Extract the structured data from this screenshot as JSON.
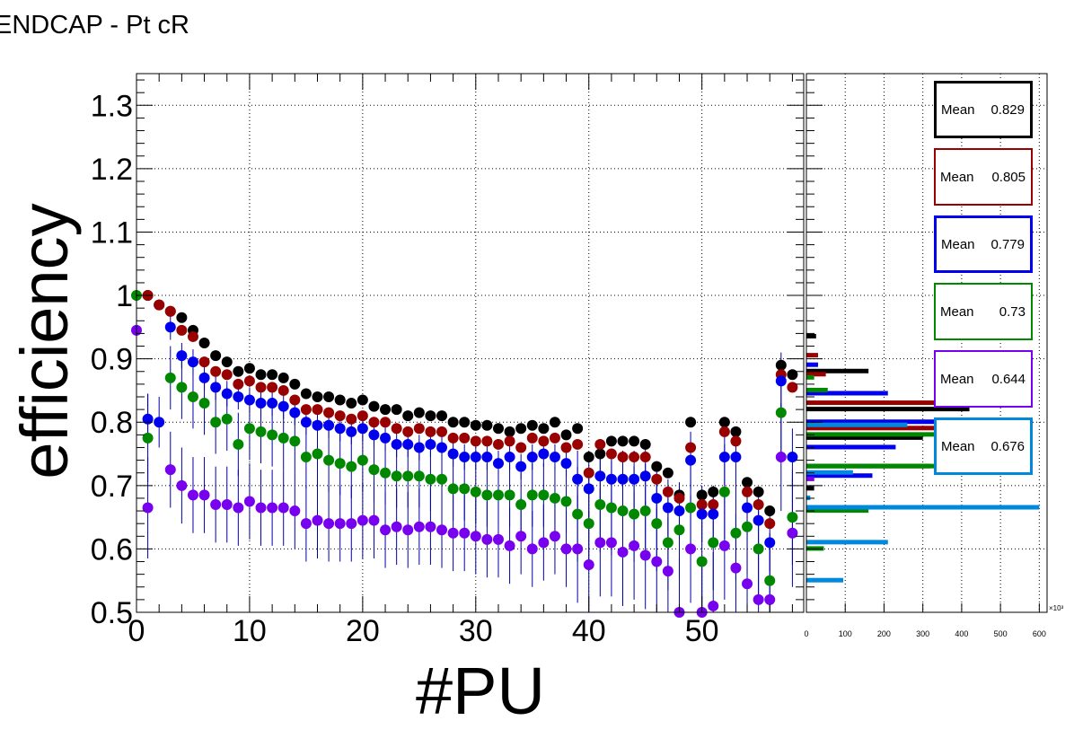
{
  "title": "ENDCAP - Pt cR",
  "chart_data": {
    "type": "scatter",
    "xlabel": "#PU",
    "ylabel": "efficiency",
    "xlim": [
      0,
      59
    ],
    "ylim": [
      0.5,
      1.35
    ],
    "grid": true,
    "xticks": [
      "0",
      "10",
      "20",
      "30",
      "40",
      "50"
    ],
    "yticks": [
      "0.5",
      "0.6",
      "0.7",
      "0.8",
      "0.9",
      "1",
      "1.1",
      "1.2",
      "1.3"
    ],
    "x": [
      0,
      1,
      2,
      3,
      4,
      5,
      6,
      7,
      8,
      9,
      10,
      11,
      12,
      13,
      14,
      15,
      16,
      17,
      18,
      19,
      20,
      21,
      22,
      23,
      24,
      25,
      26,
      27,
      28,
      29,
      30,
      31,
      32,
      33,
      34,
      35,
      36,
      37,
      38,
      39,
      40,
      41,
      42,
      43,
      44,
      45,
      46,
      47,
      48,
      49,
      50,
      51,
      52,
      53,
      54,
      55,
      56,
      57,
      58
    ],
    "series": [
      {
        "name": "black",
        "color": "#000000",
        "stat_label": "Mean",
        "mean": "0.829",
        "values": [
          null,
          1.0,
          0.985,
          0.975,
          0.965,
          0.945,
          0.925,
          0.905,
          0.895,
          0.88,
          0.885,
          0.875,
          0.875,
          0.87,
          0.86,
          0.845,
          0.84,
          0.84,
          0.835,
          0.83,
          0.835,
          0.825,
          0.82,
          0.82,
          0.81,
          0.815,
          0.81,
          0.81,
          0.8,
          0.8,
          0.795,
          0.795,
          0.79,
          0.785,
          0.79,
          0.795,
          0.79,
          0.8,
          0.78,
          0.79,
          0.745,
          0.75,
          0.77,
          0.77,
          0.77,
          0.765,
          0.73,
          0.72,
          0.685,
          0.8,
          0.685,
          0.69,
          0.8,
          0.785,
          0.705,
          0.69,
          0.66,
          0.89,
          0.875
        ]
      },
      {
        "name": "red",
        "color": "#990000",
        "stat_label": "Mean",
        "mean": "0.805",
        "values": [
          null,
          1.0,
          0.985,
          0.975,
          0.945,
          0.935,
          0.895,
          0.88,
          0.875,
          0.86,
          0.865,
          0.855,
          0.855,
          0.85,
          0.835,
          0.82,
          0.82,
          0.815,
          0.81,
          0.805,
          0.81,
          0.8,
          0.8,
          0.79,
          0.785,
          0.79,
          0.785,
          0.785,
          0.775,
          0.775,
          0.77,
          0.77,
          0.765,
          0.77,
          0.76,
          0.775,
          0.77,
          0.775,
          0.76,
          0.765,
          0.72,
          0.765,
          0.75,
          0.745,
          0.745,
          0.745,
          0.71,
          0.69,
          0.68,
          0.76,
          0.67,
          0.67,
          0.785,
          0.77,
          0.69,
          0.67,
          0.64,
          0.875,
          0.855
        ]
      },
      {
        "name": "blue",
        "color": "#0000ee",
        "stat_label": "Mean",
        "mean": "0.779",
        "values": [
          null,
          0.805,
          0.8,
          0.95,
          0.905,
          0.895,
          0.87,
          0.855,
          0.845,
          0.84,
          0.835,
          0.83,
          0.83,
          0.825,
          0.815,
          0.8,
          0.795,
          0.795,
          0.79,
          0.785,
          0.79,
          0.78,
          0.775,
          0.765,
          0.765,
          0.76,
          0.765,
          0.76,
          0.75,
          0.745,
          0.745,
          0.745,
          0.735,
          0.745,
          0.73,
          0.745,
          0.75,
          0.745,
          0.735,
          0.71,
          0.695,
          0.715,
          0.71,
          0.71,
          0.71,
          0.715,
          0.68,
          0.665,
          0.66,
          0.74,
          0.655,
          0.655,
          0.745,
          0.745,
          0.665,
          0.645,
          0.61,
          0.865,
          0.745
        ]
      },
      {
        "name": "green",
        "color": "#008800",
        "stat_label": "Mean",
        "mean": "0.73",
        "values": [
          1.0,
          0.775,
          null,
          0.87,
          0.855,
          0.84,
          0.83,
          0.8,
          0.805,
          0.765,
          0.79,
          0.785,
          0.78,
          0.775,
          0.77,
          0.745,
          0.75,
          0.74,
          0.735,
          0.73,
          0.74,
          0.725,
          0.72,
          0.715,
          0.715,
          0.715,
          0.71,
          0.71,
          0.695,
          0.695,
          0.69,
          0.685,
          0.685,
          0.685,
          0.67,
          0.685,
          0.685,
          0.68,
          0.675,
          0.655,
          0.64,
          0.67,
          0.665,
          0.66,
          0.655,
          0.66,
          0.64,
          0.61,
          0.63,
          0.665,
          0.58,
          0.61,
          0.69,
          0.625,
          0.635,
          0.6,
          0.55,
          0.815,
          0.65
        ]
      },
      {
        "name": "purple",
        "color": "#7700ee",
        "stat_label": "Mean",
        "mean": "0.644",
        "values": [
          0.945,
          0.665,
          null,
          0.725,
          0.7,
          0.685,
          0.685,
          0.67,
          0.67,
          0.665,
          0.675,
          0.665,
          0.665,
          0.665,
          0.66,
          0.64,
          0.645,
          0.64,
          0.64,
          0.64,
          0.645,
          0.645,
          0.63,
          0.635,
          0.63,
          0.635,
          0.635,
          0.63,
          0.625,
          0.625,
          0.62,
          0.615,
          0.615,
          0.605,
          0.62,
          0.6,
          0.61,
          0.62,
          0.6,
          0.6,
          0.575,
          0.61,
          0.61,
          0.595,
          0.605,
          0.59,
          0.58,
          0.565,
          0.5,
          0.6,
          0.5,
          0.51,
          0.605,
          0.57,
          0.545,
          0.52,
          0.52,
          0.745,
          0.625
        ]
      },
      {
        "name": "lightblue",
        "color": "#0088dd",
        "stat_label": "Mean",
        "mean": "0.676",
        "values": []
      }
    ],
    "side_histogram": {
      "xticks": [
        "0",
        "100",
        "200",
        "300",
        "400",
        "500",
        "600"
      ],
      "exponent": "×10³",
      "xlim": [
        0,
        620
      ]
    }
  }
}
